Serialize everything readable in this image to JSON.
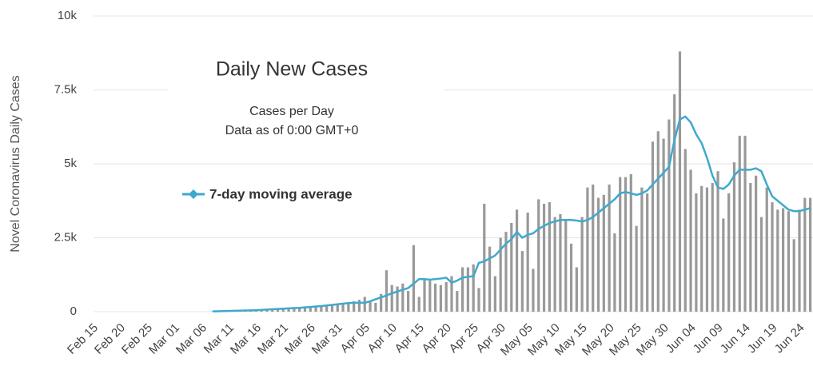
{
  "chart_data": {
    "type": "bar",
    "title": "Daily New Cases",
    "subtitle": [
      "Cases per Day",
      "Data as of 0:00 GMT+0"
    ],
    "y_label": "Novel Coronavirus Daily Cases",
    "categories": [
      "Feb 15",
      null,
      null,
      null,
      null,
      "Feb 20",
      null,
      null,
      null,
      null,
      "Feb 25",
      null,
      null,
      null,
      null,
      "Mar 01",
      null,
      null,
      null,
      null,
      "Mar 06",
      null,
      null,
      null,
      null,
      "Mar 11",
      null,
      null,
      null,
      null,
      "Mar 16",
      null,
      null,
      null,
      null,
      "Mar 21",
      null,
      null,
      null,
      null,
      "Mar 26",
      null,
      null,
      null,
      null,
      "Mar 31",
      null,
      null,
      null,
      null,
      "Apr 05",
      null,
      null,
      null,
      null,
      "Apr 10",
      null,
      null,
      null,
      null,
      "Apr 15",
      null,
      null,
      null,
      null,
      "Apr 20",
      null,
      null,
      null,
      null,
      "Apr 25",
      null,
      null,
      null,
      null,
      "Apr 30",
      null,
      null,
      null,
      null,
      "May 05",
      null,
      null,
      null,
      null,
      "May 10",
      null,
      null,
      null,
      null,
      "May 15",
      null,
      null,
      null,
      null,
      "May 20",
      null,
      null,
      null,
      null,
      "May 25",
      null,
      null,
      null,
      null,
      "May 30",
      null,
      null,
      null,
      null,
      "Jun 04",
      null,
      null,
      null,
      null,
      "Jun 09",
      null,
      null,
      null,
      null,
      "Jun 14",
      null,
      null,
      null,
      null,
      "Jun 19",
      null,
      null,
      null,
      null,
      "Jun 24",
      null,
      null
    ],
    "series": [
      {
        "type": "bar",
        "color": "#999999",
        "values": [
          0,
          0,
          0,
          0,
          0,
          0,
          0,
          0,
          0,
          0,
          0,
          0,
          0,
          0,
          0,
          0,
          0,
          0,
          0,
          0,
          0,
          0,
          10,
          15,
          20,
          25,
          30,
          35,
          40,
          50,
          55,
          60,
          70,
          80,
          90,
          100,
          110,
          120,
          130,
          150,
          160,
          180,
          200,
          220,
          250,
          280,
          300,
          320,
          350,
          400,
          500,
          350,
          300,
          600,
          1400,
          900,
          850,
          950,
          700,
          2250,
          500,
          1100,
          1050,
          950,
          900,
          1000,
          1200,
          700,
          1500,
          1500,
          1600,
          800,
          3650,
          2200,
          1200,
          2500,
          2700,
          3000,
          3450,
          2050,
          3350,
          1450,
          3800,
          3650,
          3700,
          3200,
          3300,
          3100,
          2300,
          1500,
          3200,
          4200,
          4300,
          3850,
          3950,
          4300,
          2650,
          4550,
          4550,
          4650,
          2900,
          4200,
          4000,
          5750,
          6100,
          5850,
          6500,
          7350,
          8800,
          5500,
          4800,
          4000,
          4250,
          4200,
          4350,
          4750,
          3150,
          4000,
          5050,
          5950,
          5950,
          4350,
          4600,
          3200,
          4200,
          3700,
          3450,
          3500,
          3400,
          2450,
          3450,
          3850,
          3850
        ]
      },
      {
        "type": "line",
        "name": "7-day moving average",
        "color": "#3fa9cc",
        "values": [
          null,
          null,
          null,
          null,
          null,
          null,
          null,
          null,
          null,
          null,
          null,
          null,
          null,
          null,
          null,
          null,
          null,
          null,
          null,
          null,
          null,
          null,
          10,
          15,
          20,
          25,
          30,
          35,
          40,
          45,
          50,
          60,
          70,
          80,
          90,
          100,
          110,
          120,
          130,
          145,
          160,
          175,
          190,
          210,
          230,
          250,
          270,
          290,
          300,
          300,
          300,
          350,
          420,
          480,
          550,
          620,
          680,
          740,
          800,
          950,
          1100,
          1100,
          1080,
          1100,
          1120,
          1150,
          980,
          1050,
          1150,
          1180,
          1200,
          1650,
          1700,
          1800,
          1900,
          2100,
          2300,
          2450,
          2700,
          2500,
          2600,
          2650,
          2800,
          2900,
          3000,
          3050,
          3100,
          3100,
          3100,
          3080,
          3050,
          3100,
          3200,
          3350,
          3500,
          3650,
          3800,
          4000,
          4050,
          4000,
          3950,
          4000,
          4100,
          4300,
          4500,
          4700,
          4900,
          5800,
          6500,
          6600,
          6400,
          6000,
          5700,
          5200,
          4600,
          4200,
          4150,
          4300,
          4600,
          4800,
          4800,
          4800,
          4850,
          4750,
          4300,
          3900,
          3750,
          3600,
          3450,
          3400,
          3400,
          3450,
          3500
        ]
      }
    ],
    "ylim": [
      0,
      10000
    ],
    "yticks": [
      0,
      {
        "value": 2500,
        "label": "2.5k"
      },
      {
        "value": 5000,
        "label": "5k"
      },
      {
        "value": 7500,
        "label": "7.5k"
      },
      {
        "value": 10000,
        "label": "10k"
      }
    ],
    "grid": true
  }
}
